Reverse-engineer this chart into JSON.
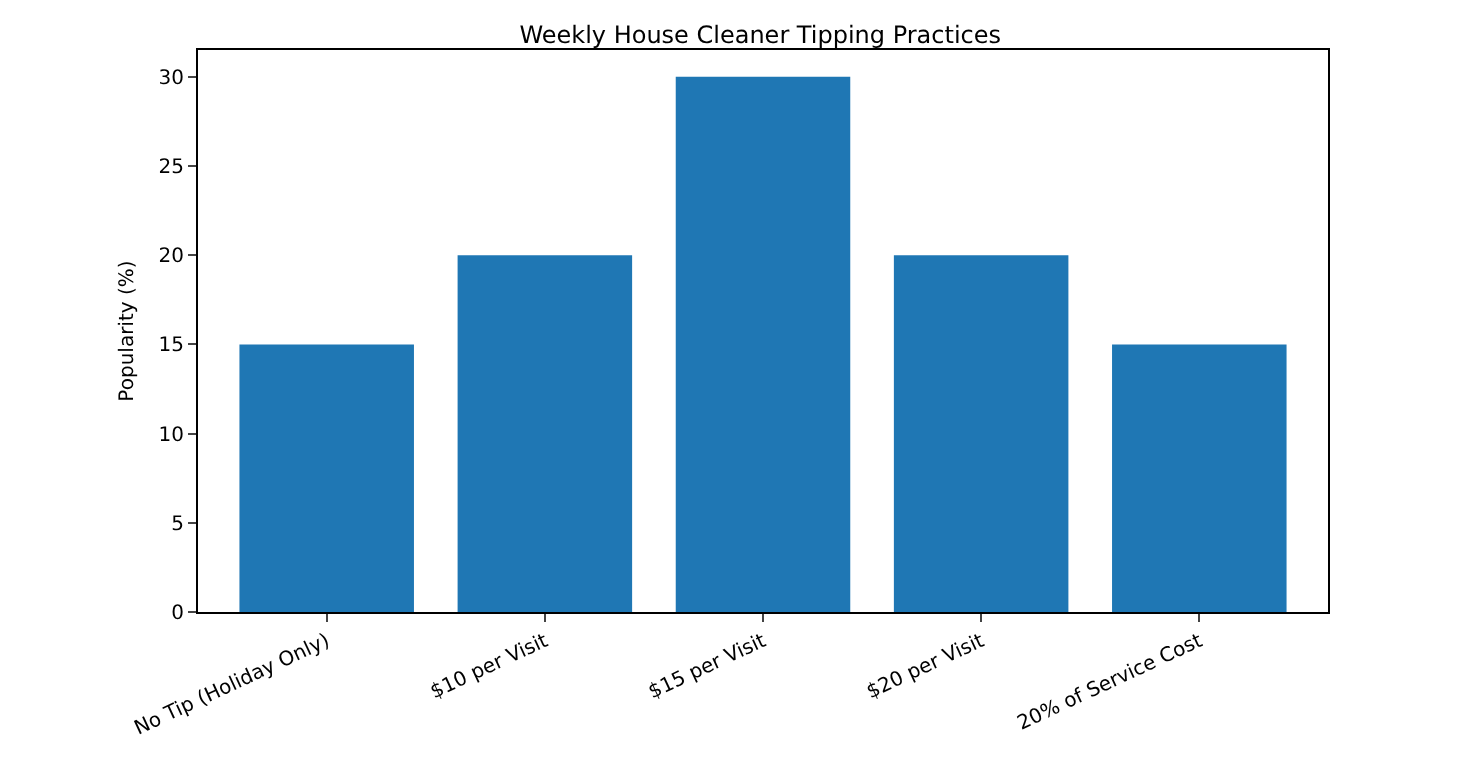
{
  "chart_data": {
    "type": "bar",
    "title": "Weekly House Cleaner Tipping Practices",
    "ylabel": "Popularity (%)",
    "categories": [
      "No Tip (Holiday Only)",
      "$10 per Visit",
      "$15 per Visit",
      "$20 per Visit",
      "20% of Service Cost"
    ],
    "values": [
      15,
      20,
      30,
      20,
      15
    ],
    "color": "#1f77b4",
    "ylim": [
      0,
      31.5
    ],
    "yticks": [
      0,
      5,
      10,
      15,
      20,
      25,
      30
    ],
    "grid": false
  }
}
